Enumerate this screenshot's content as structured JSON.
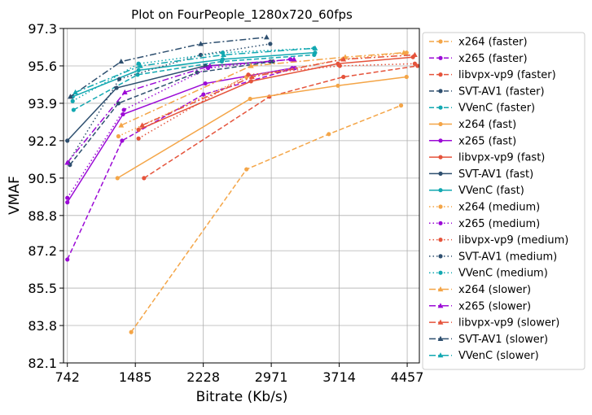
{
  "chart_data": {
    "type": "line",
    "title": "Plot on FourPeople_1280x720_60fps",
    "xlabel": "Bitrate (Kb/s)",
    "ylabel": "VMAF",
    "xlim": [
      700,
      4590
    ],
    "ylim": [
      82.1,
      97.3
    ],
    "xticks": [
      742,
      1485,
      2228,
      2971,
      3714,
      4457
    ],
    "yticks": [
      82.1,
      83.8,
      85.5,
      87.2,
      88.8,
      90.5,
      92.2,
      93.9,
      95.6,
      97.3
    ],
    "grid": true,
    "legend_position": "right-outside",
    "series": [
      {
        "name": "x264 (faster)",
        "color": "#f4a547",
        "linestyle": "dashed",
        "marker": "circle",
        "points": [
          [
            1440,
            83.5
          ],
          [
            2700,
            90.9
          ],
          [
            3600,
            92.5
          ],
          [
            4390,
            93.8
          ]
        ]
      },
      {
        "name": "x265 (faster)",
        "color": "#9b0ad6",
        "linestyle": "dashed",
        "marker": "circle",
        "points": [
          [
            742,
            86.8
          ],
          [
            1340,
            92.2
          ],
          [
            2230,
            94.3
          ],
          [
            3230,
            95.5
          ]
        ]
      },
      {
        "name": "libvpx-vp9 (faster)",
        "color": "#e5533b",
        "linestyle": "dashed",
        "marker": "circle",
        "points": [
          [
            1580,
            90.5
          ],
          [
            2950,
            94.2
          ],
          [
            3760,
            95.1
          ],
          [
            4570,
            95.6
          ]
        ]
      },
      {
        "name": "SVT-AV1 (faster)",
        "color": "#2e4f6f",
        "linestyle": "dashed",
        "marker": "circle",
        "points": [
          [
            770,
            91.1
          ],
          [
            1300,
            93.9
          ],
          [
            2160,
            95.3
          ],
          [
            2990,
            95.8
          ]
        ]
      },
      {
        "name": "VVenC (faster)",
        "color": "#12a8b1",
        "linestyle": "dashed",
        "marker": "circle",
        "points": [
          [
            810,
            93.6
          ],
          [
            1510,
            95.2
          ],
          [
            2430,
            95.8
          ],
          [
            3440,
            96.1
          ]
        ]
      },
      {
        "name": "x264 (fast)",
        "color": "#f4a547",
        "linestyle": "solid",
        "marker": "circle",
        "points": [
          [
            1290,
            90.5
          ],
          [
            2740,
            94.1
          ],
          [
            3700,
            94.7
          ],
          [
            4450,
            95.1
          ]
        ]
      },
      {
        "name": "x265 (fast)",
        "color": "#9b0ad6",
        "linestyle": "solid",
        "marker": "circle",
        "points": [
          [
            742,
            89.4
          ],
          [
            1350,
            93.4
          ],
          [
            2250,
            94.8
          ],
          [
            3200,
            95.5
          ]
        ]
      },
      {
        "name": "libvpx-vp9 (fast)",
        "color": "#e5533b",
        "linestyle": "solid",
        "marker": "circle",
        "points": [
          [
            1520,
            92.7
          ],
          [
            2750,
            94.9
          ],
          [
            3700,
            95.7
          ],
          [
            4520,
            96.0
          ]
        ]
      },
      {
        "name": "SVT-AV1 (fast)",
        "color": "#2e4f6f",
        "linestyle": "solid",
        "marker": "circle",
        "points": [
          [
            742,
            92.2
          ],
          [
            1280,
            94.6
          ],
          [
            2250,
            95.6
          ],
          [
            2960,
            95.8
          ]
        ]
      },
      {
        "name": "VVenC (fast)",
        "color": "#12a8b1",
        "linestyle": "solid",
        "marker": "circle",
        "points": [
          [
            800,
            94.2
          ],
          [
            1520,
            95.4
          ],
          [
            2440,
            95.9
          ],
          [
            3450,
            96.2
          ]
        ]
      },
      {
        "name": "x264 (medium)",
        "color": "#f4a547",
        "linestyle": "dotted",
        "marker": "circle",
        "points": [
          [
            1300,
            92.4
          ],
          [
            2700,
            95.1
          ],
          [
            3750,
            95.9
          ],
          [
            4450,
            96.2
          ]
        ]
      },
      {
        "name": "x265 (medium)",
        "color": "#9b0ad6",
        "linestyle": "dotted",
        "marker": "circle",
        "points": [
          [
            742,
            89.6
          ],
          [
            1360,
            93.6
          ],
          [
            2280,
            95.5
          ],
          [
            3180,
            95.9
          ]
        ]
      },
      {
        "name": "libvpx-vp9 (medium)",
        "color": "#e5533b",
        "linestyle": "dotted",
        "marker": "circle",
        "points": [
          [
            1520,
            92.3
          ],
          [
            2720,
            95.2
          ],
          [
            3720,
            95.6
          ],
          [
            4540,
            95.7
          ]
        ]
      },
      {
        "name": "SVT-AV1 (medium)",
        "color": "#2e4f6f",
        "linestyle": "dotted",
        "marker": "circle",
        "points": [
          [
            750,
            91.2
          ],
          [
            1310,
            95.0
          ],
          [
            2200,
            96.1
          ],
          [
            2960,
            96.6
          ]
        ]
      },
      {
        "name": "VVenC (medium)",
        "color": "#12a8b1",
        "linestyle": "dotted",
        "marker": "circle",
        "points": [
          [
            800,
            94.0
          ],
          [
            1520,
            95.7
          ],
          [
            2440,
            96.2
          ],
          [
            3440,
            96.4
          ]
        ]
      },
      {
        "name": "x264 (slower)",
        "color": "#f4a547",
        "linestyle": "dashdot",
        "marker": "triangle",
        "points": [
          [
            1330,
            92.9
          ],
          [
            2750,
            95.6
          ],
          [
            3780,
            96.0
          ],
          [
            4420,
            96.2
          ]
        ]
      },
      {
        "name": "x265 (slower)",
        "color": "#9b0ad6",
        "linestyle": "dashdot",
        "marker": "triangle",
        "points": [
          [
            742,
            91.2
          ],
          [
            1370,
            94.4
          ],
          [
            2300,
            95.6
          ],
          [
            3220,
            95.9
          ]
        ]
      },
      {
        "name": "libvpx-vp9 (slower)",
        "color": "#e5533b",
        "linestyle": "dashdot",
        "marker": "triangle",
        "points": [
          [
            1560,
            92.9
          ],
          [
            2760,
            95.1
          ],
          [
            3760,
            95.9
          ],
          [
            4540,
            96.1
          ]
        ]
      },
      {
        "name": "SVT-AV1 (slower)",
        "color": "#2e4f6f",
        "linestyle": "dashdot",
        "marker": "triangle",
        "points": [
          [
            775,
            94.2
          ],
          [
            1330,
            95.8
          ],
          [
            2200,
            96.6
          ],
          [
            2920,
            96.9
          ]
        ]
      },
      {
        "name": "VVenC (slower)",
        "color": "#12a8b1",
        "linestyle": "dashdot",
        "marker": "triangle",
        "points": [
          [
            830,
            94.4
          ],
          [
            1540,
            95.6
          ],
          [
            2450,
            96.1
          ],
          [
            3450,
            96.4
          ]
        ]
      }
    ]
  }
}
